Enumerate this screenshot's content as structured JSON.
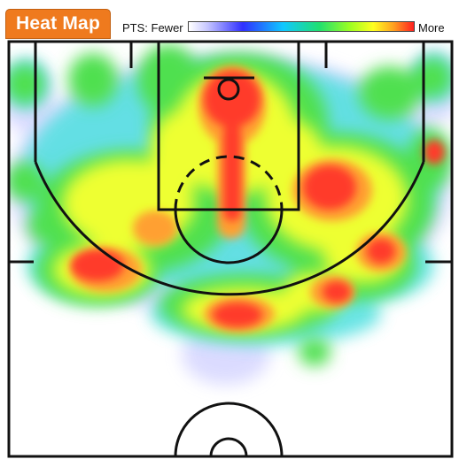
{
  "tab": {
    "title": "Heat Map"
  },
  "legend": {
    "prefix": "PTS: Fewer",
    "suffix": "More",
    "gradient_colors": [
      "#ffffff",
      "#3030ff",
      "#10c8ff",
      "#20e070",
      "#a0ff20",
      "#ffff20",
      "#ffa020",
      "#ff2020"
    ]
  },
  "colors": {
    "tab_bg": "#ef7a1e",
    "court_lines": "#111111",
    "hot": "#ff4030",
    "warm": "#ffff40",
    "mid": "#60e060",
    "cool": "#d8d8ff"
  }
}
